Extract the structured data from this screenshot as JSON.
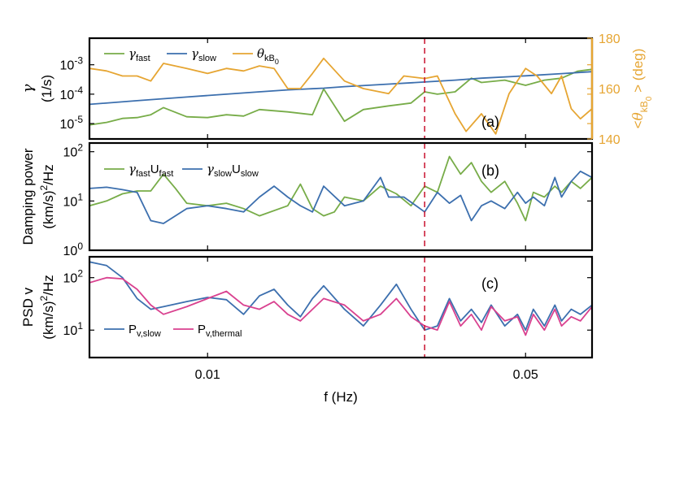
{
  "chart_data": [
    {
      "type": "line",
      "panel_label": "(a)",
      "ylabel": [
        "γ",
        "(1/s)"
      ],
      "yscale": "log",
      "ylim": [
        3e-06,
        0.008
      ],
      "y_ticks": [
        {
          "v": 1e-05,
          "b": "10",
          "e": "-5"
        },
        {
          "v": 0.0001,
          "b": "10",
          "e": "-4"
        },
        {
          "v": 0.001,
          "b": "10",
          "e": "-3"
        }
      ],
      "y2label": {
        "pre": "<θ",
        "sub": "kB",
        "subsub": "0",
        "post": "> (deg)"
      },
      "y2lim": [
        140,
        180
      ],
      "y2_ticks": [
        "140",
        "160",
        "180"
      ],
      "legend": [
        {
          "sym": "γ",
          "sub": "fast",
          "color": "#77ac48"
        },
        {
          "sym": "γ",
          "sub": "slow",
          "color": "#3c6fae"
        },
        {
          "sym": "θ",
          "sub": "kB",
          "subsub": "0",
          "color": "#e6a532"
        }
      ],
      "series": [
        {
          "name": "γfast",
          "color": "#77ac48",
          "axis": "left",
          "x": [
            0.0055,
            0.006,
            0.0065,
            0.007,
            0.0075,
            0.008,
            0.009,
            0.01,
            0.011,
            0.012,
            0.013,
            0.015,
            0.017,
            0.018,
            0.02,
            0.022,
            0.025,
            0.028,
            0.03,
            0.032,
            0.035,
            0.038,
            0.04,
            0.045,
            0.05,
            0.055,
            0.06,
            0.065,
            0.07
          ],
          "values": [
            9e-06,
            1.1e-05,
            1.5e-05,
            1.6e-05,
            2e-05,
            3.5e-05,
            1.7e-05,
            1.6e-05,
            2e-05,
            1.8e-05,
            3e-05,
            2.5e-05,
            2e-05,
            0.00015,
            1.2e-05,
            3e-05,
            4e-05,
            5e-05,
            0.00012,
            0.0001,
            0.00012,
            0.00035,
            0.00025,
            0.0003,
            0.0002,
            0.0003,
            0.00035,
            0.0006,
            0.0007
          ]
        },
        {
          "name": "γslow",
          "color": "#3c6fae",
          "axis": "left",
          "x": [
            0.0055,
            0.007,
            0.009,
            0.011,
            0.013,
            0.015,
            0.018,
            0.02,
            0.025,
            0.03,
            0.035,
            0.04,
            0.05,
            0.06,
            0.07
          ],
          "values": [
            4.5e-05,
            6e-05,
            8e-05,
            0.0001,
            0.00012,
            0.00014,
            0.00016,
            0.00018,
            0.00022,
            0.00026,
            0.0003,
            0.00035,
            0.00042,
            0.0005,
            0.00058
          ]
        },
        {
          "name": "θkB0",
          "color": "#e6a532",
          "axis": "right",
          "x": [
            0.0055,
            0.006,
            0.0065,
            0.007,
            0.0075,
            0.008,
            0.009,
            0.01,
            0.011,
            0.012,
            0.013,
            0.014,
            0.015,
            0.016,
            0.017,
            0.018,
            0.02,
            0.022,
            0.025,
            0.027,
            0.03,
            0.032,
            0.035,
            0.037,
            0.04,
            0.043,
            0.046,
            0.05,
            0.053,
            0.057,
            0.06,
            0.063,
            0.066,
            0.07
          ],
          "values": [
            168,
            167,
            165,
            165,
            163,
            170,
            168,
            166,
            168,
            167,
            169,
            168,
            160,
            160,
            166,
            172,
            163,
            160,
            158,
            165,
            164,
            165,
            150,
            143,
            150,
            142,
            158,
            168,
            165,
            158,
            165,
            152,
            148,
            152
          ]
        }
      ],
      "vline_x": 0.03
    },
    {
      "type": "line",
      "panel_label": "(b)",
      "ylabel": [
        "Damping power",
        "(km/s)",
        "2",
        "/Hz"
      ],
      "yscale": "log",
      "ylim": [
        1,
        150
      ],
      "y_ticks": [
        {
          "v": 1,
          "b": "10",
          "e": "0"
        },
        {
          "v": 10,
          "b": "10",
          "e": "1"
        },
        {
          "v": 100,
          "b": "10",
          "e": "2"
        }
      ],
      "legend": [
        {
          "sym": "γ",
          "sub": "fast",
          "txt": "U",
          "sub2": "fast",
          "color": "#77ac48"
        },
        {
          "sym": "γ",
          "sub": "slow",
          "txt": "U",
          "sub2": "slow",
          "color": "#3c6fae"
        }
      ],
      "series": [
        {
          "name": "γfastUfast",
          "color": "#77ac48",
          "x": [
            0.0055,
            0.006,
            0.0065,
            0.007,
            0.0075,
            0.008,
            0.0085,
            0.009,
            0.01,
            0.011,
            0.012,
            0.013,
            0.015,
            0.016,
            0.017,
            0.018,
            0.019,
            0.02,
            0.022,
            0.024,
            0.026,
            0.028,
            0.03,
            0.032,
            0.034,
            0.036,
            0.038,
            0.04,
            0.042,
            0.045,
            0.048,
            0.05,
            0.052,
            0.055,
            0.058,
            0.06,
            0.063,
            0.066,
            0.07
          ],
          "values": [
            8,
            10,
            14,
            16,
            16,
            35,
            18,
            9,
            8,
            9,
            7,
            5,
            8,
            22,
            7,
            5,
            6,
            12,
            10,
            20,
            14,
            8,
            20,
            15,
            80,
            35,
            60,
            25,
            15,
            25,
            9,
            4,
            15,
            12,
            20,
            15,
            25,
            18,
            30
          ]
        },
        {
          "name": "γslowUslow",
          "color": "#3c6fae",
          "x": [
            0.0055,
            0.006,
            0.0065,
            0.007,
            0.0075,
            0.008,
            0.009,
            0.01,
            0.011,
            0.012,
            0.013,
            0.014,
            0.015,
            0.016,
            0.017,
            0.018,
            0.02,
            0.022,
            0.024,
            0.025,
            0.027,
            0.03,
            0.032,
            0.034,
            0.036,
            0.038,
            0.04,
            0.042,
            0.045,
            0.048,
            0.05,
            0.052,
            0.055,
            0.058,
            0.06,
            0.063,
            0.066,
            0.07
          ],
          "values": [
            18,
            19,
            17,
            15,
            4,
            3.5,
            7,
            8,
            7,
            6,
            12,
            20,
            12,
            8,
            6,
            20,
            8,
            10,
            30,
            12,
            12,
            6,
            15,
            9,
            13,
            4,
            8,
            10,
            7,
            15,
            9,
            12,
            8,
            30,
            12,
            25,
            40,
            30
          ]
        }
      ],
      "vline_x": 0.03
    },
    {
      "type": "line",
      "panel_label": "(c)",
      "ylabel": [
        "PSD v",
        "(km/s)",
        "2",
        "/Hz"
      ],
      "yscale": "log",
      "ylim": [
        3,
        250
      ],
      "y_ticks": [
        {
          "v": 10,
          "b": "10",
          "e": "1"
        },
        {
          "v": 100,
          "b": "10",
          "e": "2"
        }
      ],
      "xlabel": "f (Hz)",
      "x_ticks": [
        "0.01",
        "0.05"
      ],
      "xscale": "log",
      "xlim": [
        0.0055,
        0.07
      ],
      "legend": [
        {
          "sym": "P",
          "sub": "v,slow",
          "color": "#3c6fae"
        },
        {
          "sym": "P",
          "sub": "v,thermal",
          "color": "#d9418f"
        }
      ],
      "series": [
        {
          "name": "Pv,slow",
          "color": "#3c6fae",
          "x": [
            0.0055,
            0.006,
            0.0065,
            0.007,
            0.0075,
            0.008,
            0.009,
            0.01,
            0.011,
            0.012,
            0.013,
            0.014,
            0.015,
            0.016,
            0.017,
            0.018,
            0.02,
            0.022,
            0.024,
            0.026,
            0.028,
            0.03,
            0.032,
            0.034,
            0.036,
            0.038,
            0.04,
            0.042,
            0.045,
            0.048,
            0.05,
            0.052,
            0.055,
            0.058,
            0.06,
            0.063,
            0.066,
            0.07
          ],
          "values": [
            200,
            170,
            100,
            40,
            25,
            28,
            35,
            42,
            38,
            20,
            45,
            60,
            30,
            18,
            40,
            70,
            25,
            12,
            30,
            75,
            25,
            10,
            12,
            40,
            15,
            25,
            14,
            30,
            12,
            20,
            10,
            25,
            12,
            30,
            15,
            25,
            20,
            30
          ]
        },
        {
          "name": "Pv,thermal",
          "color": "#d9418f",
          "x": [
            0.0055,
            0.006,
            0.0065,
            0.007,
            0.0075,
            0.008,
            0.009,
            0.01,
            0.011,
            0.012,
            0.013,
            0.014,
            0.015,
            0.016,
            0.017,
            0.018,
            0.02,
            0.022,
            0.024,
            0.026,
            0.028,
            0.03,
            0.032,
            0.034,
            0.036,
            0.038,
            0.04,
            0.042,
            0.045,
            0.048,
            0.05,
            0.052,
            0.055,
            0.058,
            0.06,
            0.063,
            0.066,
            0.07
          ],
          "values": [
            80,
            100,
            95,
            60,
            30,
            20,
            28,
            40,
            55,
            30,
            25,
            35,
            20,
            15,
            25,
            40,
            30,
            15,
            20,
            40,
            18,
            12,
            10,
            35,
            12,
            20,
            10,
            28,
            15,
            18,
            8,
            20,
            10,
            25,
            12,
            18,
            15,
            28
          ]
        }
      ],
      "vline_x": 0.03
    }
  ]
}
